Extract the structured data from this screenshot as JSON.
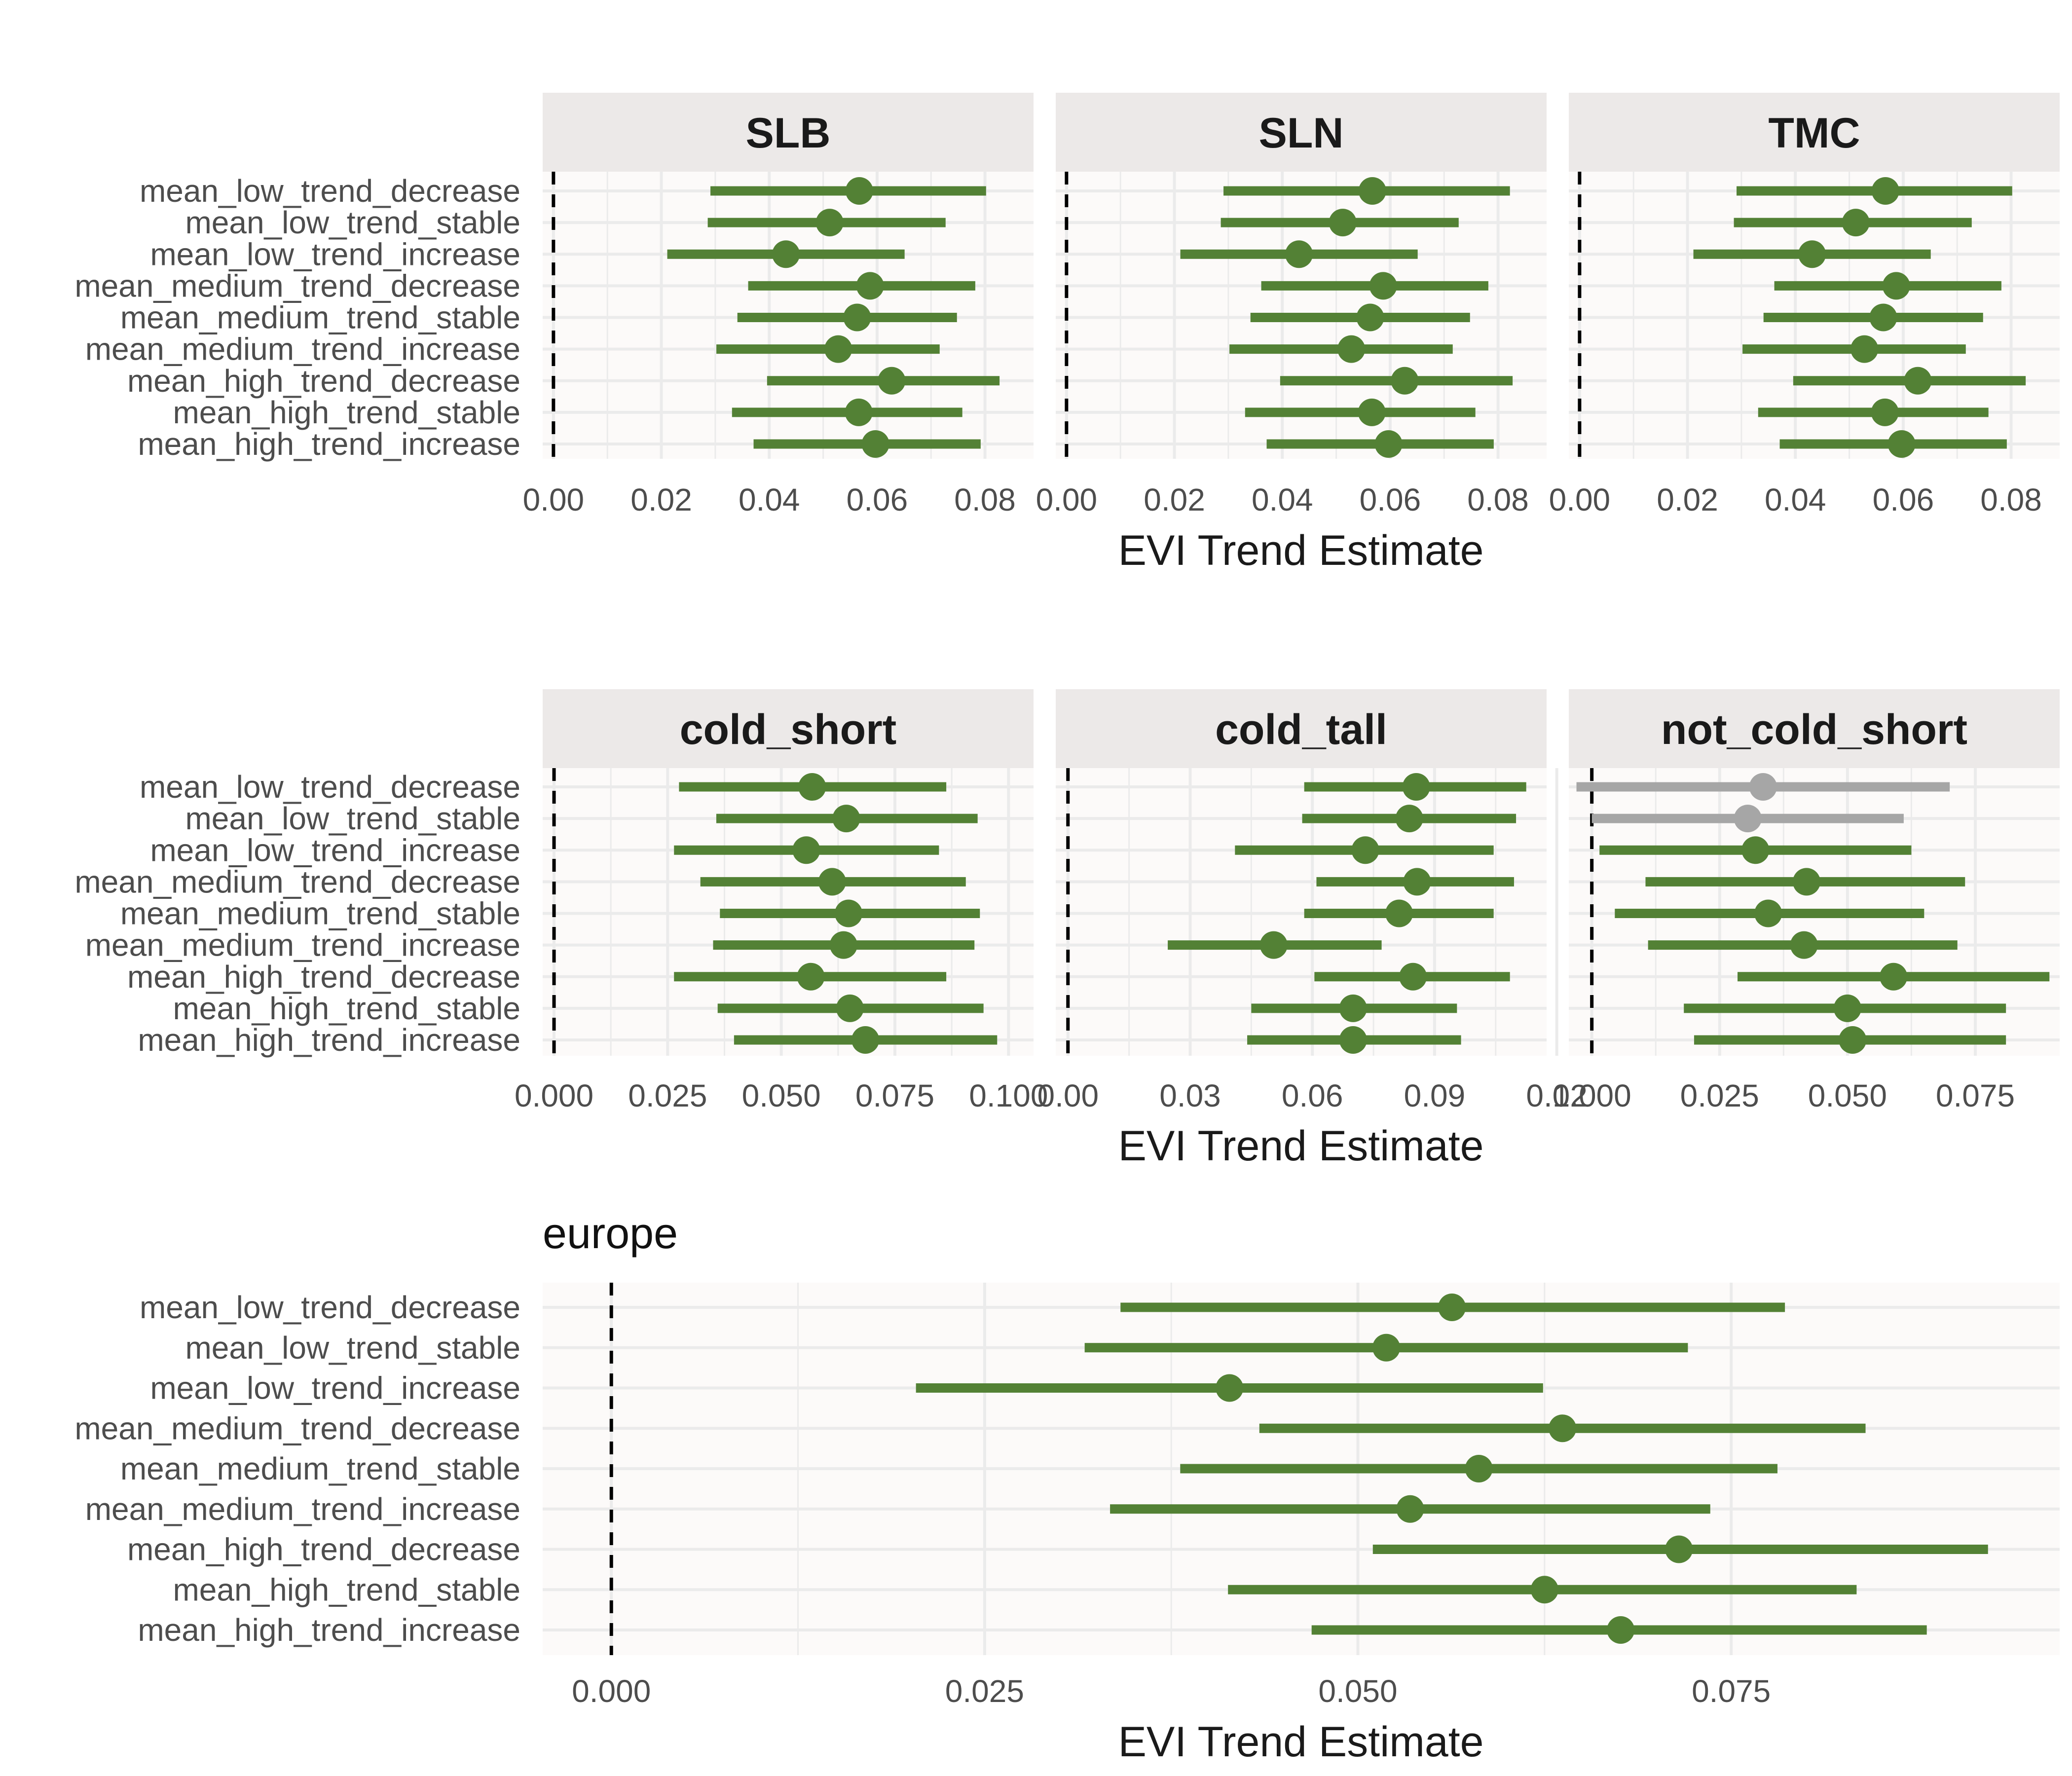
{
  "chart_data": [
    {
      "type": "forest",
      "group": "top",
      "xlabel": "EVI Trend Estimate",
      "categories": [
        "mean_low_trend_decrease",
        "mean_low_trend_stable",
        "mean_low_trend_increase",
        "mean_medium_trend_decrease",
        "mean_medium_trend_stable",
        "mean_medium_trend_increase",
        "mean_high_trend_decrease",
        "mean_high_trend_stable",
        "mean_high_trend_increase"
      ],
      "xlim": [
        -0.002,
        0.089
      ],
      "ticks": [
        0.0,
        0.02,
        0.04,
        0.06,
        0.08
      ],
      "tick_labels": [
        "0.00",
        "0.02",
        "0.04",
        "0.06",
        "0.08"
      ],
      "reference_line": 0,
      "facets": [
        {
          "title": "SLB",
          "estimate": [
            0.0567,
            0.0512,
            0.0431,
            0.0587,
            0.0563,
            0.0528,
            0.0627,
            0.0566,
            0.0597
          ],
          "lower": [
            0.0291,
            0.0286,
            0.0211,
            0.0361,
            0.0341,
            0.0302,
            0.0396,
            0.0331,
            0.0371
          ],
          "upper": [
            0.0802,
            0.0727,
            0.0651,
            0.0782,
            0.0748,
            0.0716,
            0.0827,
            0.0758,
            0.0792
          ],
          "significant": [
            true,
            true,
            true,
            true,
            true,
            true,
            true,
            true,
            true
          ]
        },
        {
          "title": "SLN",
          "estimate": [
            0.0567,
            0.0512,
            0.0431,
            0.0587,
            0.0563,
            0.0528,
            0.0627,
            0.0566,
            0.0597
          ],
          "lower": [
            0.0291,
            0.0286,
            0.0211,
            0.0361,
            0.0341,
            0.0302,
            0.0396,
            0.0331,
            0.0371
          ],
          "upper": [
            0.0822,
            0.0727,
            0.0651,
            0.0782,
            0.0748,
            0.0716,
            0.0827,
            0.0758,
            0.0792
          ],
          "significant": [
            true,
            true,
            true,
            true,
            true,
            true,
            true,
            true,
            true
          ]
        },
        {
          "title": "TMC",
          "estimate": [
            0.0567,
            0.0512,
            0.0431,
            0.0587,
            0.0563,
            0.0528,
            0.0627,
            0.0566,
            0.0597
          ],
          "lower": [
            0.0291,
            0.0286,
            0.0211,
            0.0361,
            0.0341,
            0.0302,
            0.0396,
            0.0331,
            0.0371
          ],
          "upper": [
            0.0802,
            0.0727,
            0.0651,
            0.0782,
            0.0748,
            0.0716,
            0.0827,
            0.0758,
            0.0792
          ],
          "significant": [
            true,
            true,
            true,
            true,
            true,
            true,
            true,
            true,
            true
          ]
        }
      ]
    },
    {
      "type": "forest",
      "group": "middle",
      "xlabel": "EVI Trend Estimate",
      "categories": [
        "mean_low_trend_decrease",
        "mean_low_trend_stable",
        "mean_low_trend_increase",
        "mean_medium_trend_decrease",
        "mean_medium_trend_stable",
        "mean_medium_trend_increase",
        "mean_high_trend_decrease",
        "mean_high_trend_stable",
        "mean_high_trend_increase"
      ],
      "reference_line": 0,
      "facets": [
        {
          "title": "cold_short",
          "xlim": [
            -0.0025,
            0.1055
          ],
          "ticks": [
            0,
            0.025,
            0.05,
            0.075,
            0.1
          ],
          "tick_labels": [
            "0.000",
            "0.025",
            "0.050",
            "0.075",
            "0.100"
          ],
          "estimate": [
            0.0568,
            0.0643,
            0.0555,
            0.0612,
            0.0648,
            0.0637,
            0.0565,
            0.0651,
            0.0685
          ],
          "lower": [
            0.0275,
            0.0357,
            0.0264,
            0.0322,
            0.0365,
            0.035,
            0.0264,
            0.036,
            0.0396
          ],
          "upper": [
            0.0863,
            0.0932,
            0.0847,
            0.0906,
            0.0937,
            0.0925,
            0.0863,
            0.0945,
            0.0975
          ],
          "significant": [
            true,
            true,
            true,
            true,
            true,
            true,
            true,
            true,
            true
          ]
        },
        {
          "title": "cold_tall",
          "xlim": [
            -0.003,
            0.1175
          ],
          "ticks": [
            0,
            0.03,
            0.06,
            0.09,
            0.12
          ],
          "tick_labels": [
            "0.00",
            "0.03",
            "0.06",
            "0.09",
            "0.12"
          ],
          "estimate": [
            0.0855,
            0.0838,
            0.073,
            0.0857,
            0.0813,
            0.0505,
            0.0847,
            0.07,
            0.07
          ],
          "lower": [
            0.058,
            0.0575,
            0.041,
            0.061,
            0.058,
            0.0245,
            0.0605,
            0.045,
            0.044
          ],
          "upper": [
            0.1125,
            0.11,
            0.1045,
            0.1095,
            0.1045,
            0.077,
            0.1085,
            0.0955,
            0.0965
          ],
          "significant": [
            true,
            true,
            true,
            true,
            true,
            true,
            true,
            true,
            true
          ]
        },
        {
          "title": "not_cold_short",
          "xlim": [
            -0.0045,
            0.0915
          ],
          "ticks": [
            0,
            0.025,
            0.05,
            0.075
          ],
          "tick_labels": [
            "0.000",
            "0.025",
            "0.050",
            "0.075"
          ],
          "estimate": [
            0.0335,
            0.0305,
            0.032,
            0.042,
            0.0345,
            0.0415,
            0.059,
            0.05,
            0.051
          ],
          "lower": [
            -0.003,
            0.0,
            0.0015,
            0.0105,
            0.0045,
            0.011,
            0.0285,
            0.018,
            0.02
          ],
          "upper": [
            0.07,
            0.061,
            0.0625,
            0.073,
            0.065,
            0.0715,
            0.0895,
            0.081,
            0.081
          ],
          "significant": [
            false,
            false,
            true,
            true,
            true,
            true,
            true,
            true,
            true
          ]
        }
      ]
    },
    {
      "type": "forest",
      "group": "bottom",
      "title": "europe",
      "xlabel": "EVI Trend Estimate",
      "categories": [
        "mean_low_trend_decrease",
        "mean_low_trend_stable",
        "mean_low_trend_increase",
        "mean_medium_trend_decrease",
        "mean_medium_trend_stable",
        "mean_medium_trend_increase",
        "mean_high_trend_decrease",
        "mean_high_trend_stable",
        "mean_high_trend_increase"
      ],
      "xlim": [
        -0.0046,
        0.097
      ],
      "ticks": [
        0,
        0.025,
        0.05,
        0.075
      ],
      "tick_labels": [
        "0.000",
        "0.025",
        "0.050",
        "0.075"
      ],
      "reference_line": 0,
      "estimate": [
        0.0563,
        0.0519,
        0.0414,
        0.0637,
        0.0581,
        0.0535,
        0.0715,
        0.0625,
        0.0676
      ],
      "lower": [
        0.0341,
        0.0317,
        0.0204,
        0.0434,
        0.0381,
        0.0334,
        0.051,
        0.0413,
        0.0469
      ],
      "upper": [
        0.0786,
        0.0721,
        0.0624,
        0.084,
        0.0781,
        0.0736,
        0.0922,
        0.0834,
        0.0881
      ],
      "significant": [
        true,
        true,
        true,
        true,
        true,
        true,
        true,
        true,
        true
      ]
    }
  ],
  "colors": {
    "significant": "#538135",
    "not_significant": "#a6a6a6",
    "panel_background": "#fcfaf9",
    "strip_background": "#ece9e8",
    "grid": "#ebebeb"
  }
}
